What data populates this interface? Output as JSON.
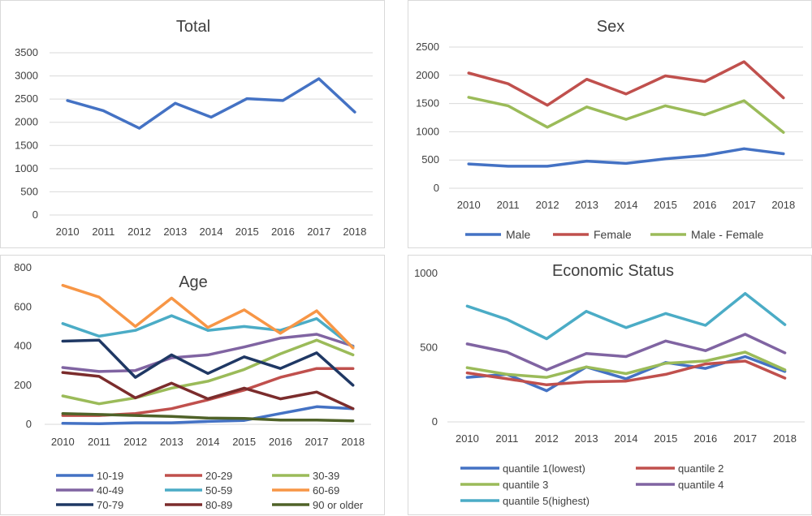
{
  "chart_data": [
    {
      "type": "line",
      "title": "Total",
      "x": [
        "2010",
        "2011",
        "2012",
        "2013",
        "2014",
        "2015",
        "2016",
        "2017",
        "2018"
      ],
      "ylim": [
        0,
        3500
      ],
      "yticks": [
        "3500",
        "3000",
        "2500",
        "2000",
        "1500",
        "1000",
        "500",
        "0"
      ],
      "grid": true,
      "legend": "none",
      "series": [
        {
          "color": "#4472C4",
          "values": [
            2470,
            2250,
            1870,
            2410,
            2110,
            2510,
            2470,
            2940,
            2220
          ]
        }
      ]
    },
    {
      "type": "line",
      "title": "Sex",
      "x": [
        "2010",
        "2011",
        "2012",
        "2013",
        "2014",
        "2015",
        "2016",
        "2017",
        "2018"
      ],
      "ylim": [
        0,
        2500
      ],
      "yticks": [
        "2500",
        "2000",
        "1500",
        "1000",
        "500",
        "0"
      ],
      "grid": true,
      "legend": "bottom",
      "series": [
        {
          "name": "Male",
          "color": "#4472C4",
          "values": [
            430,
            390,
            390,
            480,
            440,
            520,
            580,
            700,
            610
          ]
        },
        {
          "name": "Female",
          "color": "#C0504D",
          "values": [
            2040,
            1850,
            1470,
            1930,
            1670,
            1990,
            1890,
            2240,
            1600
          ]
        },
        {
          "name": "Male - Female",
          "color": "#9BBB59",
          "values": [
            1610,
            1460,
            1080,
            1440,
            1220,
            1460,
            1300,
            1550,
            990
          ]
        }
      ]
    },
    {
      "type": "line",
      "title": "Age",
      "x": [
        "2010",
        "2011",
        "2012",
        "2013",
        "2014",
        "2015",
        "2016",
        "2017",
        "2018"
      ],
      "ylim": [
        0,
        800
      ],
      "yticks": [
        "800",
        "600",
        "400",
        "200",
        "0"
      ],
      "grid": false,
      "legend": "bottom",
      "series": [
        {
          "name": "10-19",
          "color": "#4472C4",
          "values": [
            5,
            3,
            8,
            8,
            15,
            20,
            55,
            90,
            80
          ]
        },
        {
          "name": "20-29",
          "color": "#C0504D",
          "values": [
            45,
            45,
            55,
            80,
            125,
            175,
            240,
            285,
            285
          ]
        },
        {
          "name": "30-39",
          "color": "#9BBB59",
          "values": [
            145,
            105,
            135,
            185,
            220,
            280,
            360,
            430,
            355
          ]
        },
        {
          "name": "40-49",
          "color": "#8064A2",
          "values": [
            290,
            270,
            275,
            340,
            355,
            395,
            440,
            460,
            400
          ]
        },
        {
          "name": "50-59",
          "color": "#4BACC6",
          "values": [
            515,
            450,
            480,
            555,
            480,
            500,
            480,
            540,
            395
          ]
        },
        {
          "name": "60-69",
          "color": "#F79646",
          "values": [
            710,
            650,
            500,
            645,
            495,
            585,
            465,
            580,
            390
          ]
        },
        {
          "name": "70-79",
          "color": "#1F3864",
          "values": [
            425,
            430,
            240,
            355,
            260,
            345,
            285,
            365,
            200
          ]
        },
        {
          "name": "80-89",
          "color": "#7B2C2C",
          "values": [
            265,
            245,
            135,
            210,
            130,
            185,
            130,
            165,
            80
          ]
        },
        {
          "name": "90 or older",
          "color": "#4F6228",
          "values": [
            55,
            50,
            45,
            40,
            32,
            30,
            22,
            22,
            18
          ]
        }
      ]
    },
    {
      "type": "line",
      "title": "Economic Status",
      "x": [
        "2010",
        "2011",
        "2012",
        "2013",
        "2014",
        "2015",
        "2016",
        "2017",
        "2018"
      ],
      "ylim": [
        0,
        1000
      ],
      "yticks": [
        "1000",
        "500",
        "0"
      ],
      "grid": false,
      "legend": "bottom",
      "series": [
        {
          "name": "quantile 1(lowest)",
          "color": "#4472C4",
          "values": [
            300,
            320,
            210,
            370,
            290,
            400,
            360,
            440,
            340
          ]
        },
        {
          "name": "quantile 2",
          "color": "#C0504D",
          "values": [
            330,
            290,
            250,
            270,
            275,
            320,
            390,
            410,
            295
          ]
        },
        {
          "name": "quantile 3",
          "color": "#9BBB59",
          "values": [
            365,
            320,
            300,
            370,
            325,
            395,
            410,
            470,
            350
          ]
        },
        {
          "name": "quantile 4",
          "color": "#8064A2",
          "values": [
            525,
            470,
            350,
            460,
            440,
            545,
            480,
            590,
            465
          ]
        },
        {
          "name": "quantile 5(highest)",
          "color": "#4BACC6",
          "values": [
            780,
            690,
            560,
            745,
            635,
            730,
            650,
            865,
            655
          ]
        }
      ]
    }
  ]
}
